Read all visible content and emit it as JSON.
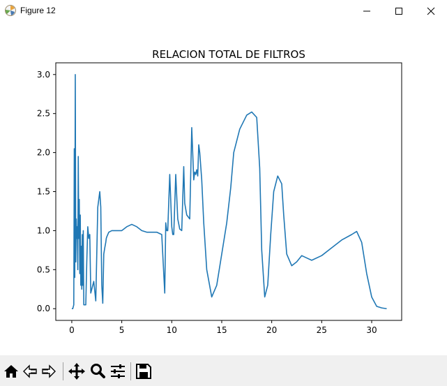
{
  "window": {
    "title": "Figure 12"
  },
  "toolbar": {
    "buttons": [
      "home-icon",
      "back-arrow-icon",
      "forward-arrow-icon",
      "pan-icon",
      "zoom-icon",
      "subplots-icon",
      "save-icon"
    ]
  },
  "colors": {
    "line": "#1f77b4",
    "toolbar_bg": "#f0f0f0"
  },
  "chart_data": {
    "type": "line",
    "title": "RELACION TOTAL DE FILTROS",
    "xlabel": "",
    "ylabel": "",
    "xlim": [
      -1.6,
      33.0
    ],
    "ylim": [
      -0.15,
      3.15
    ],
    "xticks": [
      0,
      5,
      10,
      15,
      20,
      25,
      30
    ],
    "yticks": [
      0.0,
      0.5,
      1.0,
      1.5,
      2.0,
      2.5,
      3.0
    ],
    "xtick_labels": [
      "0",
      "5",
      "10",
      "15",
      "20",
      "25",
      "30"
    ],
    "ytick_labels": [
      "0.0",
      "0.5",
      "1.0",
      "1.5",
      "2.0",
      "2.5",
      "3.0"
    ],
    "grid": false,
    "series": [
      {
        "x": [
          0.0,
          0.1,
          0.2,
          0.25,
          0.3,
          0.35,
          0.4,
          0.45,
          0.5,
          0.55,
          0.6,
          0.65,
          0.7,
          0.75,
          0.8,
          0.85,
          0.9,
          0.95,
          1.0,
          1.05,
          1.1,
          1.15,
          1.2,
          1.3,
          1.4,
          1.5,
          1.6,
          1.7,
          1.8,
          1.9,
          2.0,
          2.1,
          2.2,
          2.4,
          2.6,
          2.8,
          2.9,
          3.0,
          3.1,
          3.2,
          3.3,
          3.4,
          3.45,
          3.5,
          3.7,
          4.0,
          4.5,
          5.0,
          5.5,
          6.0,
          6.5,
          7.0,
          7.5,
          8.0,
          8.5,
          9.0,
          9.3,
          9.4,
          9.45,
          9.5,
          9.55,
          9.6,
          9.8,
          10.0,
          10.1,
          10.2,
          10.4,
          10.6,
          10.8,
          11.0,
          11.2,
          11.3,
          11.5,
          11.8,
          12.0,
          12.2,
          12.3,
          12.4,
          12.5,
          12.6,
          12.65,
          12.7,
          12.8,
          13.0,
          13.2,
          13.5,
          14.0,
          14.5,
          15.0,
          15.5,
          15.9,
          16.2,
          16.8,
          17.5,
          18.0,
          18.5,
          18.8,
          19.0,
          19.3,
          19.6,
          19.9,
          20.2,
          20.6,
          21.0,
          21.2,
          21.5,
          22.0,
          22.5,
          23.0,
          23.5,
          24.0,
          25.0,
          26.0,
          27.0,
          28.0,
          28.5,
          29.0,
          29.5,
          30.0,
          30.5,
          31.0,
          31.5
        ],
        "y": [
          0.0,
          0.0,
          0.05,
          2.05,
          0.4,
          3.0,
          0.6,
          1.15,
          0.9,
          1.05,
          0.5,
          1.95,
          0.9,
          1.4,
          0.45,
          1.2,
          0.3,
          0.8,
          0.25,
          0.95,
          0.3,
          1.0,
          0.05,
          0.05,
          0.05,
          0.6,
          1.05,
          0.9,
          0.95,
          0.2,
          0.25,
          0.3,
          0.35,
          0.1,
          1.3,
          1.5,
          1.3,
          0.3,
          0.07,
          0.7,
          0.78,
          0.85,
          0.9,
          0.92,
          0.98,
          1.0,
          1.0,
          1.0,
          1.05,
          1.08,
          1.05,
          1.0,
          0.98,
          0.98,
          0.98,
          0.95,
          0.2,
          1.1,
          1.05,
          1.0,
          1.0,
          1.0,
          1.72,
          1.05,
          0.95,
          0.95,
          1.72,
          1.15,
          1.02,
          1.0,
          1.82,
          1.35,
          1.2,
          1.15,
          2.32,
          1.65,
          1.75,
          1.72,
          1.78,
          1.7,
          1.9,
          2.1,
          2.0,
          1.65,
          1.1,
          0.5,
          0.15,
          0.3,
          0.7,
          1.1,
          1.55,
          2.0,
          2.3,
          2.48,
          2.52,
          2.45,
          1.8,
          0.75,
          0.15,
          0.3,
          0.95,
          1.5,
          1.7,
          1.6,
          1.2,
          0.7,
          0.55,
          0.6,
          0.68,
          0.65,
          0.62,
          0.68,
          0.78,
          0.88,
          0.95,
          0.99,
          0.85,
          0.45,
          0.15,
          0.03,
          0.01,
          0.0
        ]
      }
    ]
  }
}
